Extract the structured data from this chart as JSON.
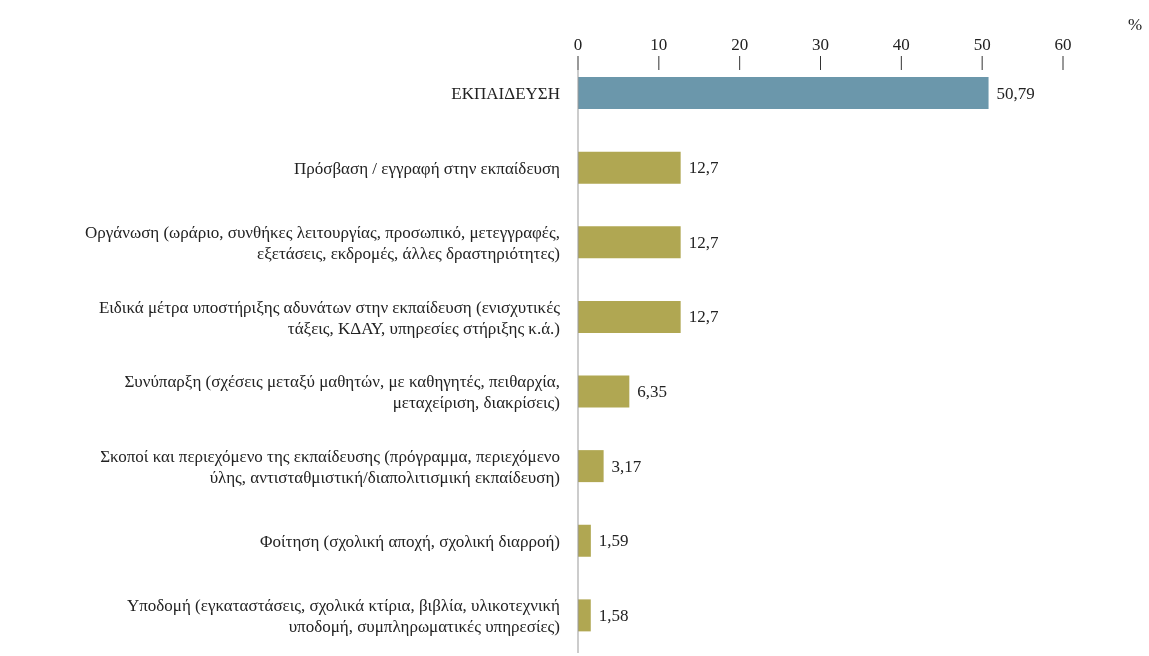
{
  "chart_data": {
    "type": "bar",
    "orientation": "horizontal",
    "xlabel": "%",
    "categories": [
      "ΕΚΠΑΙΔΕΥΣΗ",
      "Πρόσβαση / εγγραφή στην εκπαίδευση",
      "Οργάνωση (ωράριο, συνθήκες λειτουργίας, προσωπικό, μετεγγραφές, εξετάσεις, εκδρομές, άλλες δραστηριότητες)",
      "Ειδικά μέτρα υποστήριξης αδυνάτων στην εκπαίδευση (ενισχυτικές τάξεις, ΚΔΑΥ, υπηρεσίες στήριξης κ.ά.)",
      "Συνύπαρξη (σχέσεις μεταξύ μαθητών, με καθηγητές, πειθαρχία, μεταχείριση, διακρίσεις)",
      "Σκοποί και περιεχόμενο της εκπαίδευσης (πρόγραμμα, περιεχόμενο ύλης, αντισταθμιστική/διαπολιτισμική εκπαίδευση)",
      "Φοίτηση (σχολική αποχή, σχολική διαρροή)",
      "Υποδομή (εγκαταστάσεις, σχολικά κτίρια, βιβλία, υλικοτεχνική υποδομή, συμπληρωματικές υπηρεσίες)"
    ],
    "values": [
      50.79,
      12.7,
      12.7,
      12.7,
      6.35,
      3.17,
      1.59,
      1.58
    ],
    "value_labels": [
      "50,79",
      "12,7",
      "12,7",
      "12,7",
      "6,35",
      "3,17",
      "1,59",
      "1,58"
    ],
    "colors": [
      "#6b97ab",
      "#b0a752",
      "#b0a752",
      "#b0a752",
      "#b0a752",
      "#b0a752",
      "#b0a752",
      "#b0a752"
    ],
    "xlim": [
      0,
      60
    ],
    "xticks": [
      0,
      10,
      20,
      30,
      40,
      50,
      60
    ],
    "grid": false,
    "legend": false
  }
}
